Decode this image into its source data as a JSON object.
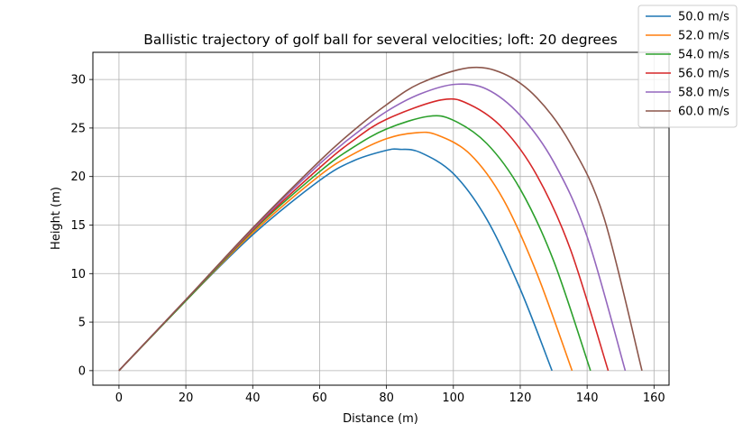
{
  "chart_data": {
    "type": "line",
    "title": "Ballistic trajectory of golf ball for several velocities; loft: 20 degrees",
    "xlabel": "Distance (m)",
    "ylabel": "Height (m)",
    "xlim": [
      -7.8,
      164.5
    ],
    "ylim": [
      -1.5,
      32.8
    ],
    "xticks": [
      0,
      20,
      40,
      60,
      80,
      100,
      120,
      140,
      160
    ],
    "yticks": [
      0,
      5,
      10,
      15,
      20,
      25,
      30
    ],
    "grid": true,
    "legend": "top-right",
    "series": [
      {
        "name": "50.0 m/s",
        "color": "#1f77b4",
        "x": [
          0,
          20,
          40,
          60,
          70,
          80,
          84,
          90,
          100,
          110,
          120,
          129.5
        ],
        "y": [
          0,
          7.2,
          14.0,
          19.6,
          21.6,
          22.7,
          22.8,
          22.5,
          20.3,
          15.6,
          8.4,
          0
        ]
      },
      {
        "name": "52.0 m/s",
        "color": "#ff7f0e",
        "x": [
          0,
          20,
          40,
          60,
          70,
          80,
          88.5,
          95,
          105,
          115,
          125,
          135.5
        ],
        "y": [
          0,
          7.2,
          14.2,
          20.1,
          22.3,
          23.9,
          24.5,
          24.3,
          22.3,
          17.6,
          10.0,
          0
        ]
      },
      {
        "name": "54.0 m/s",
        "color": "#2ca02c",
        "x": [
          0,
          20,
          40,
          60,
          70,
          80,
          92.5,
          100,
          110,
          120,
          130,
          141
        ],
        "y": [
          0,
          7.2,
          14.4,
          20.5,
          23.0,
          24.9,
          26.2,
          25.8,
          23.4,
          18.7,
          11.3,
          0
        ]
      },
      {
        "name": "56.0 m/s",
        "color": "#d62728",
        "x": [
          0,
          20,
          40,
          60,
          70,
          80,
          96.5,
          105,
          115,
          125,
          135,
          146.3
        ],
        "y": [
          0,
          7.3,
          14.5,
          20.9,
          23.7,
          25.9,
          27.9,
          27.4,
          24.9,
          20.1,
          12.5,
          0
        ]
      },
      {
        "name": "58.0 m/s",
        "color": "#9467bd",
        "x": [
          0,
          20,
          40,
          60,
          70,
          80,
          90,
          100.5,
          110,
          120,
          130,
          140,
          151.4
        ],
        "y": [
          0,
          7.3,
          14.6,
          21.3,
          24.2,
          26.7,
          28.5,
          29.5,
          29.0,
          26.3,
          21.5,
          13.8,
          0
        ]
      },
      {
        "name": "60.0 m/s",
        "color": "#8c564b",
        "x": [
          0,
          20,
          40,
          60,
          70,
          80,
          90,
          104.5,
          115,
          125,
          135,
          145,
          156.4
        ],
        "y": [
          0,
          7.3,
          14.7,
          21.6,
          24.7,
          27.4,
          29.6,
          31.2,
          30.6,
          28.1,
          23.4,
          15.8,
          0
        ]
      }
    ]
  }
}
